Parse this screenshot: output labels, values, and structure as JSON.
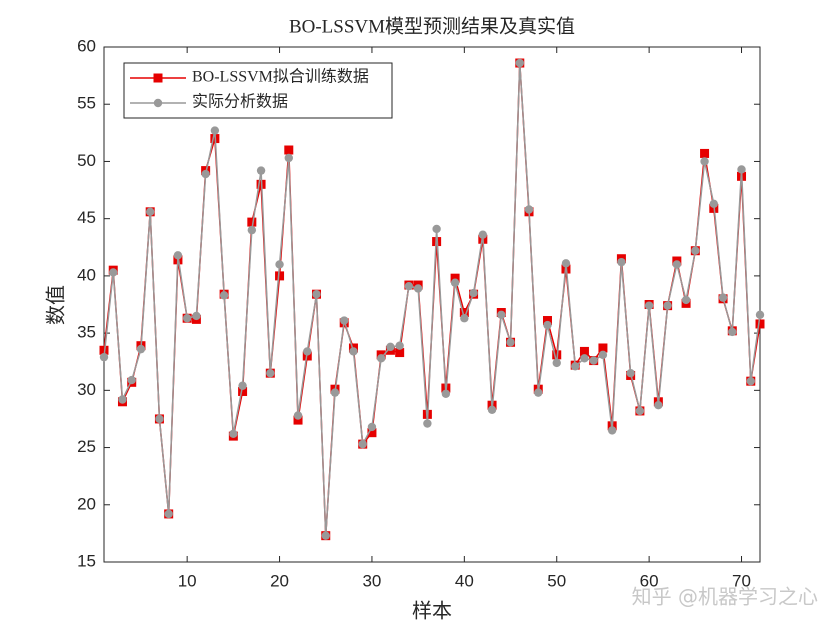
{
  "chart_data": {
    "type": "line",
    "title": "BO-LSSVM模型预测结果及真实值",
    "xlabel": "样本",
    "ylabel": "数值",
    "watermark": "知乎 @机器学习之心",
    "x": [
      1,
      2,
      3,
      4,
      5,
      6,
      7,
      8,
      9,
      10,
      11,
      12,
      13,
      14,
      15,
      16,
      17,
      18,
      19,
      20,
      21,
      22,
      23,
      24,
      25,
      26,
      27,
      28,
      29,
      30,
      31,
      32,
      33,
      34,
      35,
      36,
      37,
      38,
      39,
      40,
      41,
      42,
      43,
      44,
      45,
      46,
      47,
      48,
      49,
      50,
      51,
      52,
      53,
      54,
      55,
      56,
      57,
      58,
      59,
      60,
      61,
      62,
      63,
      64,
      65,
      66,
      67,
      68,
      69,
      70,
      71,
      72
    ],
    "series": [
      {
        "name": "BO-LSSVM拟合训练数据",
        "color": "#e60000",
        "marker": "square",
        "values": [
          33.5,
          40.5,
          29.0,
          30.7,
          33.9,
          45.6,
          27.5,
          19.2,
          41.4,
          36.3,
          36.2,
          49.2,
          52.0,
          38.4,
          26.0,
          29.9,
          44.7,
          48.0,
          31.5,
          40.0,
          51.0,
          27.4,
          33.0,
          38.4,
          17.3,
          30.1,
          35.9,
          33.7,
          25.3,
          26.3,
          33.1,
          33.5,
          33.3,
          39.2,
          39.2,
          27.9,
          43.0,
          30.2,
          39.8,
          36.8,
          38.4,
          43.2,
          28.7,
          36.8,
          34.2,
          58.6,
          45.6,
          30.1,
          36.1,
          33.1,
          40.6,
          32.2,
          33.4,
          32.6,
          33.7,
          26.9,
          41.5,
          31.3,
          28.2,
          37.5,
          29.0,
          37.4,
          41.3,
          37.6,
          42.2,
          50.7,
          45.9,
          38.0,
          35.2,
          48.7,
          30.8,
          35.8
        ]
      },
      {
        "name": "实际分析数据",
        "color": "#999999",
        "marker": "circle",
        "values": [
          32.9,
          40.3,
          29.2,
          30.9,
          33.6,
          45.6,
          27.5,
          19.2,
          41.8,
          36.3,
          36.5,
          48.9,
          52.7,
          38.3,
          26.2,
          30.4,
          44.0,
          49.2,
          31.5,
          41.0,
          50.3,
          27.8,
          33.4,
          38.4,
          17.3,
          29.8,
          36.1,
          33.4,
          25.3,
          26.8,
          32.8,
          33.8,
          33.9,
          39.1,
          38.9,
          27.1,
          44.1,
          29.7,
          39.4,
          36.3,
          38.5,
          43.6,
          28.3,
          36.6,
          34.2,
          58.6,
          45.8,
          29.8,
          35.7,
          32.4,
          41.1,
          32.1,
          32.8,
          32.6,
          33.1,
          26.5,
          41.2,
          31.5,
          28.2,
          37.4,
          28.7,
          37.4,
          41.0,
          37.9,
          42.2,
          50.0,
          46.3,
          38.1,
          35.1,
          49.3,
          30.8,
          36.6
        ]
      }
    ],
    "xlim": [
      1,
      72
    ],
    "xticks": [
      10,
      20,
      30,
      40,
      50,
      60,
      70
    ],
    "ylim": [
      15,
      60
    ],
    "yticks": [
      15,
      20,
      25,
      30,
      35,
      40,
      45,
      50,
      55,
      60
    ],
    "grid": false,
    "legend": "northwest"
  }
}
